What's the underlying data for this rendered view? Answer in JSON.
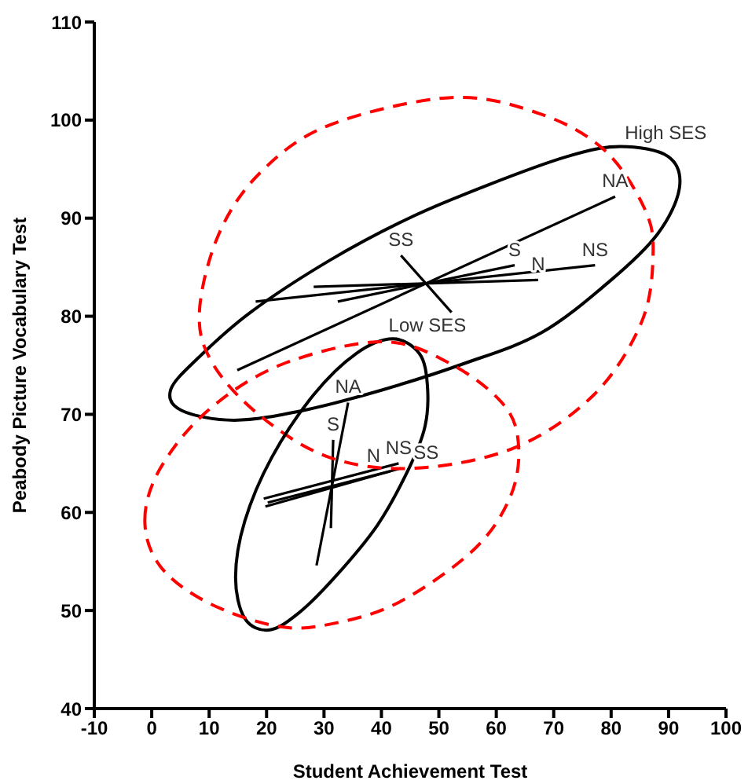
{
  "chart_data": {
    "type": "line",
    "xlabel": "Student Achievement Test",
    "ylabel": "Peabody Picture Vocabulary Test",
    "xlim": [
      -10,
      100
    ],
    "ylim": [
      40,
      110
    ],
    "xticks": [
      -10,
      0,
      10,
      20,
      30,
      40,
      50,
      60,
      70,
      80,
      90,
      100
    ],
    "yticks": [
      40,
      50,
      60,
      70,
      80,
      90,
      100,
      110
    ],
    "grid": false,
    "marker": "none",
    "line_style": "solid",
    "annotations": [
      "High SES",
      "Low SES"
    ],
    "series": [
      {
        "name": "NA",
        "color": "#000000",
        "x": [
          14.9,
          80.7
        ],
        "values": [
          74.5,
          92.2
        ]
      },
      {
        "name": "SS",
        "color": "#000000",
        "x": [
          52.2,
          43.4
        ],
        "values": [
          80.4,
          86.2
        ]
      },
      {
        "name": "NS",
        "color": "#000000",
        "x": [
          18.1,
          77.2
        ],
        "values": [
          81.5,
          85.2
        ]
      },
      {
        "name": "S",
        "color": "#000000",
        "x": [
          32.4,
          63.2
        ],
        "values": [
          81.5,
          85.2
        ]
      },
      {
        "name": "N",
        "color": "#000000",
        "x": [
          28.2,
          67.3
        ],
        "values": [
          83.0,
          83.7
        ]
      },
      {
        "name": "NA",
        "color": "#000000",
        "x": [
          28.7,
          34.2
        ],
        "values": [
          54.6,
          71.2
        ]
      },
      {
        "name": "S",
        "color": "#000000",
        "x": [
          31.2,
          31.6
        ],
        "values": [
          58.4,
          67.4
        ]
      },
      {
        "name": "NS",
        "color": "#000000",
        "x": [
          19.5,
          43.0
        ],
        "values": [
          61.4,
          65.0
        ]
      },
      {
        "name": "SS",
        "color": "#000000",
        "x": [
          19.8,
          43.4
        ],
        "values": [
          60.6,
          64.5
        ]
      },
      {
        "name": "N",
        "color": "#000000",
        "x": [
          20.2,
          41.5
        ],
        "values": [
          61.0,
          64.2
        ]
      }
    ]
  }
}
